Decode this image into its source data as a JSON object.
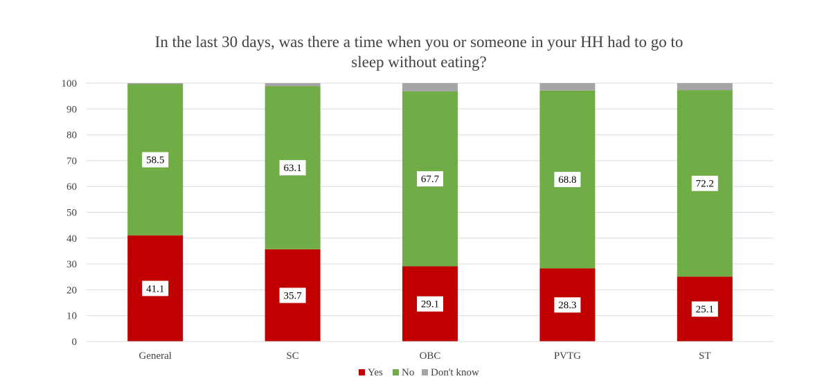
{
  "chart_data": {
    "type": "bar",
    "stacked": true,
    "title_lines": [
      "In the last 30 days, was there a time when you or someone in your HH had to go to",
      "sleep without eating?"
    ],
    "categories": [
      "General",
      "SC",
      "OBC",
      "PVTG",
      "ST"
    ],
    "series": [
      {
        "name": "Yes",
        "color": "#c00000",
        "values": [
          41.1,
          35.7,
          29.1,
          28.3,
          25.1
        ],
        "labels": [
          "41.1",
          "35.7",
          "29.1",
          "28.3",
          "25.1"
        ]
      },
      {
        "name": "No",
        "color": "#70ad47",
        "values": [
          58.5,
          63.1,
          67.7,
          68.8,
          72.2
        ],
        "labels": [
          "58.5",
          "63.1",
          "67.7",
          "68.8",
          "72.2"
        ]
      },
      {
        "name": "Don't know",
        "color": "#a5a5a5",
        "values": [
          0.4,
          1.2,
          3.2,
          2.9,
          2.7
        ]
      }
    ],
    "ylim": [
      0,
      100
    ],
    "yticks": [
      "0",
      "10",
      "20",
      "30",
      "40",
      "50",
      "60",
      "70",
      "80",
      "90",
      "100"
    ],
    "grid": true,
    "legend_position": "bottom"
  }
}
